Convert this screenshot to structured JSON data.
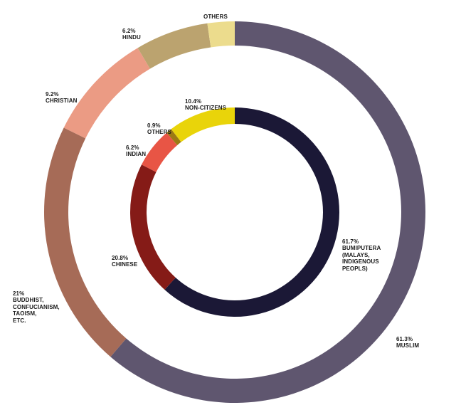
{
  "chart_data": [
    {
      "type": "pie",
      "ring": "outer",
      "categories": [
        "MUSLIM",
        "BUDDHIST,\nCONFUCIANISM,\nTAOISM,\nETC.",
        "CHRISTIAN",
        "HINDU",
        "OTHERS"
      ],
      "values": [
        61.3,
        21,
        9.2,
        6.2,
        2.3
      ],
      "value_labels": [
        "61.3%",
        "21%",
        "9.2%",
        "6.2%",
        ""
      ],
      "colors": [
        "#5f566f",
        "#a66b57",
        "#eb9b84",
        "#bba36f",
        "#ecdc8d"
      ]
    },
    {
      "type": "pie",
      "ring": "inner",
      "categories": [
        "BUMIPUTERA\n(MALAYS,\nINDIGENOUS\nPEOPLS)",
        "CHINESE",
        "INDIAN",
        "OTHERS",
        "NON-CITIZENS"
      ],
      "values": [
        61.7,
        20.8,
        6.2,
        0.9,
        10.4
      ],
      "value_labels": [
        "61.7%",
        "20.8%",
        "6.2%",
        "0.9%",
        "10.4%"
      ],
      "colors": [
        "#1b1836",
        "#851b17",
        "#e85545",
        "#9c7a14",
        "#e9d40a"
      ]
    }
  ]
}
